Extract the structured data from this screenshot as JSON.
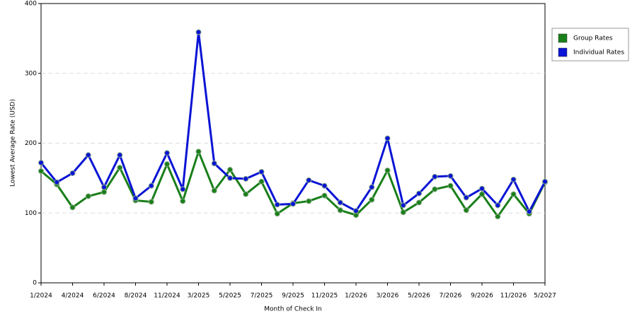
{
  "chart_data": {
    "type": "line",
    "x_label": "Month of Check In",
    "y_label": "Lowest Average Rate (USD)",
    "categories": [
      "1/2024",
      null,
      "4/2024",
      null,
      "6/2024",
      null,
      "8/2024",
      null,
      "11/2024",
      null,
      "3/2025",
      null,
      "5/2025",
      null,
      "7/2025",
      null,
      "9/2025",
      null,
      "11/2025",
      null,
      "1/2026",
      null,
      "3/2026",
      null,
      "5/2026",
      null,
      "7/2026",
      null,
      "9/2026",
      null,
      "11/2026",
      null,
      "5/2027"
    ],
    "series": [
      {
        "name": "Group Rates",
        "color": "#1a7f1a",
        "values": [
          160,
          141,
          108,
          124,
          130,
          165,
          118,
          116,
          170,
          117,
          188,
          132,
          162,
          127,
          145,
          99,
          114,
          117,
          125,
          104,
          97,
          119,
          161,
          101,
          115,
          134,
          139,
          104,
          127,
          95,
          127,
          99,
          144
        ]
      },
      {
        "name": "Individual Rates",
        "color": "#0a14d4",
        "values": [
          172,
          144,
          157,
          183,
          137,
          183,
          121,
          139,
          186,
          134,
          359,
          171,
          150,
          149,
          159,
          112,
          113,
          147,
          139,
          115,
          103,
          137,
          207,
          111,
          128,
          152,
          153,
          122,
          135,
          111,
          148,
          102,
          145
        ]
      }
    ],
    "ylim": [
      0,
      400
    ],
    "yticks": [
      0,
      100,
      200,
      300,
      400
    ],
    "grid": true,
    "legend": "right"
  }
}
